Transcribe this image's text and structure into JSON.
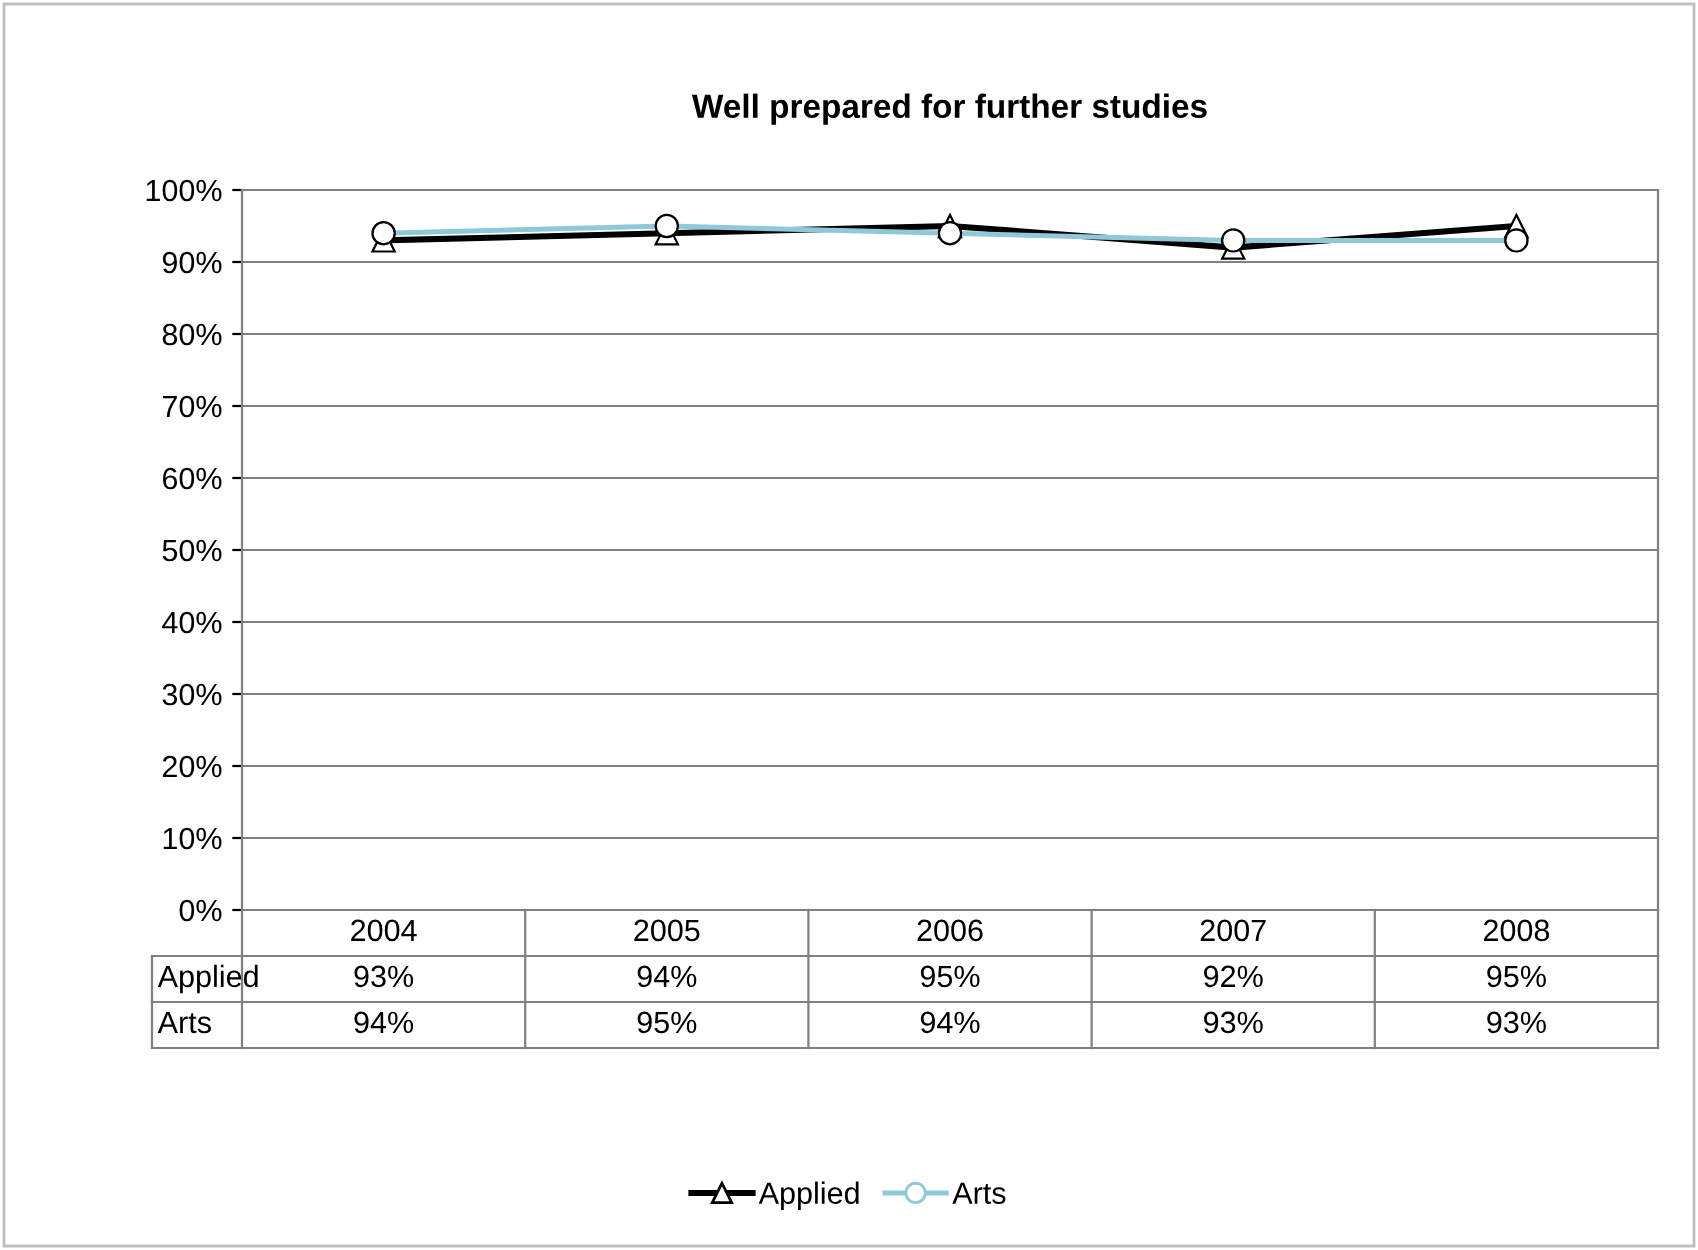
{
  "chart_data": {
    "type": "line",
    "title": "Well prepared for further studies",
    "categories": [
      "2004",
      "2005",
      "2006",
      "2007",
      "2008"
    ],
    "series": [
      {
        "name": "Applied",
        "color": "#000000",
        "marker": "triangle",
        "values": [
          93,
          94,
          95,
          92,
          95
        ],
        "value_labels": [
          "93%",
          "94%",
          "95%",
          "92%",
          "95%"
        ]
      },
      {
        "name": "Arts",
        "color": "#8fc8d8",
        "marker": "circle",
        "values": [
          94,
          95,
          94,
          93,
          93
        ],
        "value_labels": [
          "94%",
          "95%",
          "94%",
          "93%",
          "93%"
        ]
      }
    ],
    "ylim": [
      0,
      100
    ],
    "yticks": [
      {
        "value": 0,
        "label": "0%"
      },
      {
        "value": 10,
        "label": "10%"
      },
      {
        "value": 20,
        "label": "20%"
      },
      {
        "value": 30,
        "label": "30%"
      },
      {
        "value": 40,
        "label": "40%"
      },
      {
        "value": 50,
        "label": "50%"
      },
      {
        "value": 60,
        "label": "60%"
      },
      {
        "value": 70,
        "label": "70%"
      },
      {
        "value": 80,
        "label": "80%"
      },
      {
        "value": 90,
        "label": "90%"
      },
      {
        "value": 100,
        "label": "100%"
      }
    ],
    "grid": "y",
    "legend": "bottom",
    "line_style": "solid"
  }
}
